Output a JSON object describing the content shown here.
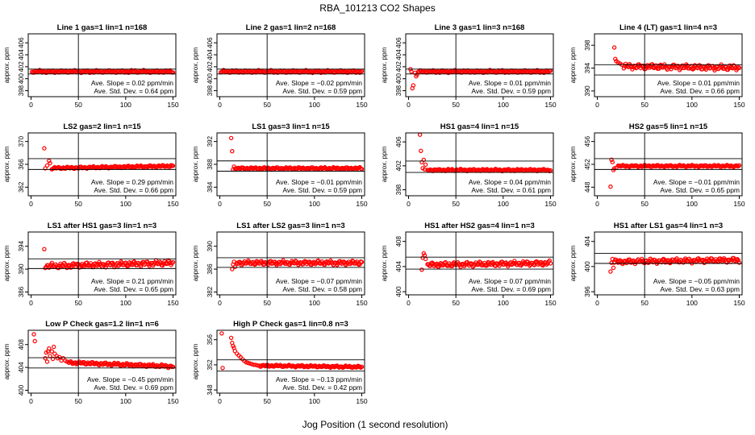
{
  "page": {
    "title": "RBA_101213  CO2 Shapes",
    "xlabel": "Jog Position (1 second resolution)"
  },
  "style": {
    "marker_color": "#ff0000",
    "line_color": "#000000"
  },
  "chart_data": [
    {
      "type": "scatter",
      "title": "Line 1 gas=1 lin=1 n=168",
      "ylabel": "approx. ppm",
      "ylim": [
        397,
        407.5
      ],
      "yticks": [
        398,
        400,
        402,
        404,
        406
      ],
      "xlim": [
        -3,
        153
      ],
      "xticks": [
        0,
        50,
        100,
        150
      ],
      "hlines": [
        400.8,
        401.6
      ],
      "vline": 50,
      "start": 1,
      "base": 401.2,
      "noise": 0.25,
      "trend": 0,
      "offset": 1.5,
      "init": [],
      "slope_text": "Ave. Slope =  0.02  ppm/min",
      "std_text": "Ave. Std. Dev. =  0.64  ppm"
    },
    {
      "type": "scatter",
      "title": "Line 2 gas=1 lin=2 n=168",
      "ylabel": "approx. ppm",
      "ylim": [
        397,
        407.5
      ],
      "yticks": [
        398,
        400,
        402,
        404,
        406
      ],
      "xlim": [
        -3,
        153
      ],
      "xticks": [
        0,
        50,
        100,
        150
      ],
      "hlines": [
        400.8,
        401.6
      ],
      "vline": 50,
      "start": 1,
      "base": 401.2,
      "noise": 0.25,
      "trend": 0,
      "offset": 2.5,
      "init": [],
      "slope_text": "Ave. Slope =  −0.02  ppm/min",
      "std_text": "Ave. Std. Dev. =  0.59  ppm"
    },
    {
      "type": "scatter",
      "title": "Line 3 gas=1 lin=3 n=168",
      "ylabel": "approx. ppm",
      "ylim": [
        397,
        407.5
      ],
      "yticks": [
        398,
        400,
        402,
        404,
        406
      ],
      "xlim": [
        -3,
        153
      ],
      "xticks": [
        0,
        50,
        100,
        150
      ],
      "hlines": [
        400.8,
        401.6
      ],
      "vline": 50,
      "start": 10,
      "base": 401.2,
      "noise": 0.25,
      "trend": 0,
      "offset": 3.5,
      "init": [
        [
          2,
          401.6
        ],
        [
          3,
          401.2
        ],
        [
          4,
          398.4
        ],
        [
          5,
          398.9
        ],
        [
          7,
          401.0
        ],
        [
          8,
          400.4
        ],
        [
          9,
          400.7
        ]
      ],
      "slope_text": "Ave. Slope =  0.01  ppm/min",
      "std_text": "Ave. Std. Dev. =  0.59  ppm"
    },
    {
      "type": "scatter",
      "title": "Line 4 (LT) gas=1 lin=4 n=3",
      "ylabel": "approx. ppm",
      "ylim": [
        389,
        400
      ],
      "yticks": [
        390,
        394,
        398
      ],
      "xlim": [
        -3,
        153
      ],
      "xticks": [
        0,
        50,
        100,
        150
      ],
      "hlines": [
        392.8,
        394.6
      ],
      "vline": 50,
      "start": 28,
      "base": 394.2,
      "noise": 0.55,
      "trend": -0.002,
      "offset": 4.5,
      "init": [
        [
          18,
          397.6
        ],
        [
          19,
          395.6
        ],
        [
          20,
          395.2
        ],
        [
          22,
          395.0
        ],
        [
          24,
          394.8
        ],
        [
          26,
          394.6
        ]
      ],
      "slope_text": "Ave. Slope =  0.01  ppm/min",
      "std_text": "Ave. Std. Dev. =  0.66  ppm"
    },
    {
      "type": "scatter",
      "title": "LS2 gas=2 lin=1 n=15",
      "ylabel": "approx. ppm",
      "ylim": [
        360.5,
        371.5
      ],
      "yticks": [
        362,
        366,
        370
      ],
      "xlim": [
        -3,
        153
      ],
      "xticks": [
        0,
        50,
        100,
        150
      ],
      "hlines": [
        365.1,
        367.0
      ],
      "vline": 50,
      "start": 22,
      "base": 365.5,
      "noise": 0.22,
      "trend": 0.003,
      "offset": 5.5,
      "init": [
        [
          14,
          368.8
        ],
        [
          15,
          365.3
        ],
        [
          17,
          365.8
        ],
        [
          19,
          366.6
        ],
        [
          20,
          366.2
        ]
      ],
      "slope_text": "Ave. Slope =  0.29  ppm/min",
      "std_text": "Ave. Std. Dev. =  0.66  ppm"
    },
    {
      "type": "scatter",
      "title": "LS1 gas=3 lin=1 n=15",
      "ylabel": "approx. ppm",
      "ylim": [
        382.5,
        393.5
      ],
      "yticks": [
        384,
        388,
        392
      ],
      "xlim": [
        -3,
        153
      ],
      "xticks": [
        0,
        50,
        100,
        150
      ],
      "hlines": [
        386.8,
        388.6
      ],
      "vline": 50,
      "start": 16,
      "base": 387.3,
      "noise": 0.22,
      "trend": 0,
      "offset": 6.5,
      "init": [
        [
          12,
          392.6
        ],
        [
          13,
          390.3
        ],
        [
          14,
          387.1
        ],
        [
          15,
          387.6
        ]
      ],
      "slope_text": "Ave. Slope =  −0.01  ppm/min",
      "std_text": "Ave. Std. Dev. =  0.59  ppm"
    },
    {
      "type": "scatter",
      "title": "HS1 gas=4 lin=1 n=15",
      "ylabel": "approx. ppm",
      "ylim": [
        397,
        407.5
      ],
      "yticks": [
        398,
        402,
        406
      ],
      "xlim": [
        -3,
        153
      ],
      "xticks": [
        0,
        50,
        100,
        150
      ],
      "hlines": [
        400.9,
        402.8
      ],
      "vline": 50,
      "start": 20,
      "base": 401.3,
      "noise": 0.2,
      "trend": 0,
      "offset": 7.5,
      "init": [
        [
          12,
          407.2
        ],
        [
          13,
          404.5
        ],
        [
          14,
          402.6
        ],
        [
          15,
          401.6
        ],
        [
          16,
          403.0
        ],
        [
          17,
          401.4
        ],
        [
          18,
          402.2
        ]
      ],
      "slope_text": "Ave. Slope =  0.04  ppm/min",
      "std_text": "Ave. Std. Dev. =  0.61  ppm"
    },
    {
      "type": "scatter",
      "title": "HS2 gas=5 lin=1 n=15",
      "ylabel": "approx. ppm",
      "ylim": [
        446.5,
        457.5
      ],
      "yticks": [
        448,
        452,
        456
      ],
      "xlim": [
        -3,
        153
      ],
      "xticks": [
        0,
        50,
        100,
        150
      ],
      "hlines": [
        451.1,
        453.0
      ],
      "vline": 50,
      "start": 22,
      "base": 451.7,
      "noise": 0.2,
      "trend": 0,
      "offset": 8.5,
      "init": [
        [
          14,
          448.1
        ],
        [
          15,
          452.8
        ],
        [
          16,
          452.4
        ],
        [
          17,
          451.0
        ],
        [
          18,
          451.3
        ],
        [
          20,
          451.4
        ]
      ],
      "slope_text": "Ave. Slope =  −0.01  ppm/min",
      "std_text": "Ave. Std. Dev. =  0.65  ppm"
    },
    {
      "type": "scatter",
      "title": "LS1 after HS1 gas=3 lin=1 n=3",
      "ylabel": "approx. ppm",
      "ylim": [
        385.5,
        396.5
      ],
      "yticks": [
        386,
        390,
        394
      ],
      "xlim": [
        -3,
        153
      ],
      "xticks": [
        0,
        50,
        100,
        150
      ],
      "hlines": [
        390.1,
        391.8
      ],
      "vline": 50,
      "start": 16,
      "base": 390.8,
      "noise": 0.55,
      "trend": 0.004,
      "offset": 9.5,
      "init": [
        [
          14,
          393.5
        ],
        [
          15,
          390.2
        ]
      ],
      "slope_text": "Ave. Slope =  0.21  ppm/min",
      "std_text": "Ave. Std. Dev. =  0.65  ppm"
    },
    {
      "type": "scatter",
      "title": "LS1 after LS2 gas=3 lin=1 n=3",
      "ylabel": "approx. ppm",
      "ylim": [
        381.5,
        392.5
      ],
      "yticks": [
        382,
        386,
        390
      ],
      "xlim": [
        -3,
        153
      ],
      "xticks": [
        0,
        50,
        100,
        150
      ],
      "hlines": [
        386.3,
        388.0
      ],
      "vline": 50,
      "start": 18,
      "base": 387.1,
      "noise": 0.45,
      "trend": 0,
      "offset": 10.5,
      "init": [
        [
          13,
          386.0
        ],
        [
          14,
          386.8
        ],
        [
          15,
          387.3
        ],
        [
          16,
          386.4
        ]
      ],
      "slope_text": "Ave. Slope =  −0.07  ppm/min",
      "std_text": "Ave. Std. Dev. =  0.58  ppm"
    },
    {
      "type": "scatter",
      "title": "HS1 after HS2 gas=4 lin=1 n=3",
      "ylabel": "approx. ppm",
      "ylim": [
        399.5,
        409.5
      ],
      "yticks": [
        400,
        404,
        408
      ],
      "xlim": [
        -3,
        153
      ],
      "xticks": [
        0,
        50,
        100,
        150
      ],
      "hlines": [
        403.6,
        405.5
      ],
      "vline": 50,
      "start": 20,
      "base": 404.4,
      "noise": 0.45,
      "trend": 0.002,
      "offset": 11.5,
      "init": [
        [
          14,
          403.5
        ],
        [
          15,
          405.4
        ],
        [
          16,
          406.1
        ],
        [
          17,
          405.8
        ],
        [
          18,
          405.2
        ]
      ],
      "slope_text": "Ave. Slope =  0.07  ppm/min",
      "std_text": "Ave. Std. Dev. =  0.69  ppm"
    },
    {
      "type": "scatter",
      "title": "HS1 after LS1 gas=4 lin=1 n=3",
      "ylabel": "approx. ppm",
      "ylim": [
        395.5,
        405.5
      ],
      "yticks": [
        396,
        400,
        404
      ],
      "xlim": [
        -3,
        153
      ],
      "xticks": [
        0,
        50,
        100,
        150
      ],
      "hlines": [
        400.5,
        402.1
      ],
      "vline": 50,
      "start": 18,
      "base": 400.9,
      "noise": 0.45,
      "trend": 0.002,
      "offset": 12.5,
      "init": [
        [
          14,
          399.2
        ],
        [
          15,
          400.6
        ],
        [
          16,
          401.2
        ],
        [
          17,
          399.8
        ]
      ],
      "slope_text": "Ave. Slope =  −0.05  ppm/min",
      "std_text": "Ave. Std. Dev. =  0.63  ppm"
    },
    {
      "type": "scatter",
      "title": "Low P Check gas=1.2 lin=1 n=6",
      "ylabel": "approx. ppm",
      "ylim": [
        399.5,
        410.5
      ],
      "yticks": [
        400,
        404,
        408
      ],
      "xlim": [
        -3,
        153
      ],
      "xticks": [
        0,
        50,
        100,
        150
      ],
      "hlines": [
        403.9,
        405.7
      ],
      "vline": 50,
      "start": 40,
      "base": 404.6,
      "noise": 0.3,
      "trend": -0.006,
      "offset": 13.5,
      "init": [
        [
          3,
          409.8
        ],
        [
          4,
          408.6
        ],
        [
          15,
          405.6
        ],
        [
          16,
          406.6
        ],
        [
          17,
          405.0
        ],
        [
          18,
          406.8
        ],
        [
          19,
          407.3
        ],
        [
          20,
          406.0
        ],
        [
          22,
          406.8
        ],
        [
          23,
          405.5
        ],
        [
          24,
          407.6
        ],
        [
          25,
          406.4
        ],
        [
          27,
          406.0
        ],
        [
          28,
          405.6
        ],
        [
          30,
          405.8
        ],
        [
          32,
          405.2
        ],
        [
          34,
          405.6
        ],
        [
          36,
          405.2
        ],
        [
          38,
          405.0
        ]
      ],
      "slope_text": "Ave. Slope =  −0.45  ppm/min",
      "std_text": "Ave. Std. Dev. =  0.69  ppm"
    },
    {
      "type": "scatter",
      "title": "High P Check gas=1 lin=0.8 n=3",
      "ylabel": "approx. ppm",
      "ylim": [
        347.5,
        357.5
      ],
      "yticks": [
        348,
        352,
        356
      ],
      "xlim": [
        -3,
        153
      ],
      "xticks": [
        0,
        50,
        100,
        150
      ],
      "hlines": [
        351.0,
        352.8
      ],
      "vline": 50,
      "start": 42,
      "base": 351.8,
      "noise": 0.2,
      "trend": -0.002,
      "offset": 14.5,
      "init": [
        [
          2,
          357.0
        ],
        [
          3,
          351.5
        ],
        [
          12,
          356.3
        ],
        [
          13,
          355.5
        ],
        [
          14,
          355.0
        ],
        [
          15,
          354.7
        ],
        [
          16,
          354.2
        ],
        [
          18,
          353.8
        ],
        [
          20,
          353.5
        ],
        [
          22,
          353.2
        ],
        [
          24,
          352.9
        ],
        [
          26,
          352.6
        ],
        [
          28,
          352.4
        ],
        [
          30,
          352.3
        ],
        [
          32,
          352.2
        ],
        [
          34,
          352.1
        ],
        [
          36,
          352.0
        ],
        [
          38,
          352.0
        ],
        [
          40,
          351.9
        ]
      ],
      "slope_text": "Ave. Slope =  −0.13  ppm/min",
      "std_text": "Ave. Std. Dev. =  0.42  ppm"
    }
  ]
}
